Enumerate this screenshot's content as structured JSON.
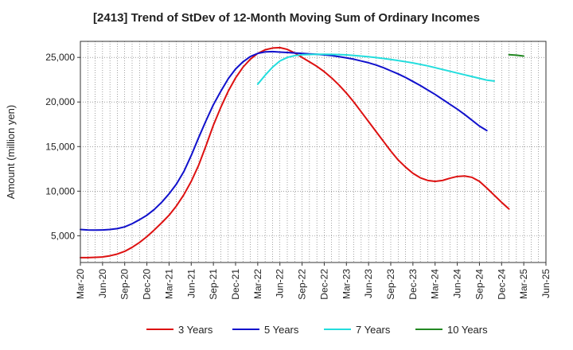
{
  "chart_data": {
    "type": "line",
    "title": "[2413]  Trend of StDev of 12-Month Moving Sum of Ordinary Incomes",
    "xlabel": "",
    "ylabel": "Amount (million yen)",
    "ylim": [
      2000,
      26800
    ],
    "y_ticks": [
      5000,
      10000,
      15000,
      20000,
      25000
    ],
    "y_tick_labels": [
      "5,000",
      "10,000",
      "15,000",
      "20,000",
      "25,000"
    ],
    "x_tick_labels": [
      "Mar-20",
      "Jun-20",
      "Sep-20",
      "Dec-20",
      "Mar-21",
      "Jun-21",
      "Sep-21",
      "Dec-21",
      "Mar-22",
      "Jun-22",
      "Sep-22",
      "Dec-22",
      "Mar-23",
      "Jun-23",
      "Sep-23",
      "Dec-23",
      "Mar-24",
      "Jun-24",
      "Sep-24",
      "Dec-24",
      "Mar-25",
      "Jun-25"
    ],
    "x_months": [
      "Mar-20",
      "Apr-20",
      "May-20",
      "Jun-20",
      "Jul-20",
      "Aug-20",
      "Sep-20",
      "Oct-20",
      "Nov-20",
      "Dec-20",
      "Jan-21",
      "Feb-21",
      "Mar-21",
      "Apr-21",
      "May-21",
      "Jun-21",
      "Jul-21",
      "Aug-21",
      "Sep-21",
      "Oct-21",
      "Nov-21",
      "Dec-21",
      "Jan-22",
      "Feb-22",
      "Mar-22",
      "Apr-22",
      "May-22",
      "Jun-22",
      "Jul-22",
      "Aug-22",
      "Sep-22",
      "Oct-22",
      "Nov-22",
      "Dec-22",
      "Jan-23",
      "Feb-23",
      "Mar-23",
      "Apr-23",
      "May-23",
      "Jun-23",
      "Jul-23",
      "Aug-23",
      "Sep-23",
      "Oct-23",
      "Nov-23",
      "Dec-23",
      "Jan-24",
      "Feb-24",
      "Mar-24",
      "Apr-24",
      "May-24",
      "Jun-24",
      "Jul-24",
      "Aug-24",
      "Sep-24",
      "Oct-24",
      "Nov-24",
      "Dec-24",
      "Jan-25",
      "Feb-25",
      "Mar-25",
      "Apr-25",
      "May-25",
      "Jun-25"
    ],
    "grid": true,
    "legend_position": "bottom",
    "series": [
      {
        "name": "3 Years",
        "color": "#dd1111",
        "start_index": 0,
        "values": [
          2550,
          2550,
          2580,
          2620,
          2750,
          2950,
          3250,
          3700,
          4250,
          4900,
          5650,
          6450,
          7300,
          8350,
          9600,
          11100,
          12900,
          15100,
          17400,
          19400,
          21200,
          22700,
          23900,
          24800,
          25450,
          25850,
          26050,
          26100,
          25900,
          25500,
          25000,
          24500,
          24000,
          23400,
          22700,
          21900,
          21000,
          20000,
          18900,
          17800,
          16700,
          15600,
          14500,
          13500,
          12700,
          12000,
          11500,
          11200,
          11100,
          11200,
          11450,
          11650,
          11700,
          11550,
          11100,
          10350,
          9550,
          8750,
          8000
        ]
      },
      {
        "name": "5 Years",
        "color": "#1111cc",
        "start_index": 0,
        "values": [
          5700,
          5650,
          5630,
          5650,
          5700,
          5800,
          6000,
          6350,
          6800,
          7300,
          7950,
          8750,
          9700,
          10800,
          12200,
          14000,
          16000,
          17900,
          19700,
          21200,
          22600,
          23700,
          24500,
          25100,
          25450,
          25620,
          25650,
          25600,
          25550,
          25500,
          25450,
          25400,
          25350,
          25280,
          25200,
          25080,
          24950,
          24800,
          24600,
          24400,
          24150,
          23850,
          23500,
          23150,
          22750,
          22300,
          21850,
          21350,
          20850,
          20300,
          19750,
          19200,
          18600,
          17950,
          17300,
          16800
        ]
      },
      {
        "name": "7 Years",
        "color": "#22dddd",
        "start_index": 24,
        "values": [
          22000,
          23000,
          23900,
          24600,
          25000,
          25200,
          25300,
          25330,
          25350,
          25350,
          25340,
          25320,
          25280,
          25220,
          25150,
          25070,
          24980,
          24880,
          24770,
          24650,
          24520,
          24380,
          24220,
          24050,
          23850,
          23650,
          23450,
          23250,
          23050,
          22850,
          22650,
          22450,
          22350
        ]
      },
      {
        "name": "10 Years",
        "color": "#228822",
        "start_index": 58,
        "values": [
          25300,
          25250,
          25150
        ]
      }
    ]
  }
}
